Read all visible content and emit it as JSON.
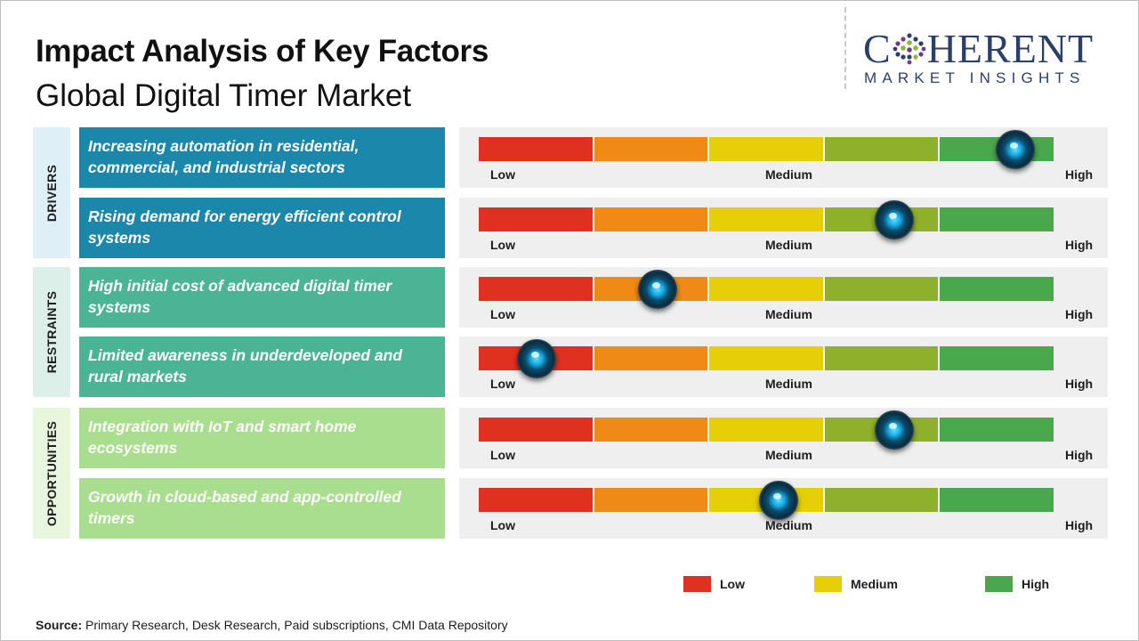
{
  "title": "Impact Analysis of Key Factors",
  "subtitle": "Global Digital Timer Market",
  "logo": {
    "main": "COHERENT",
    "sub": "MARKET INSIGHTS",
    "color": "#2b3f6b"
  },
  "scale": {
    "low_label": "Low",
    "medium_label": "Medium",
    "high_label": "High",
    "segment_colors": [
      "#e03020",
      "#ef8a17",
      "#e6cf06",
      "#8fb02a",
      "#4aa84c"
    ]
  },
  "legend": [
    {
      "label": "Low",
      "color": "#e03020"
    },
    {
      "label": "Medium",
      "color": "#e6cf06"
    },
    {
      "label": "High",
      "color": "#4aa84c"
    }
  ],
  "source": {
    "prefix": "Source:",
    "text": " Primary Research, Desk Research, Paid subscriptions, CMI Data Repository"
  },
  "chart_data": {
    "type": "gauge",
    "title": "Impact Analysis of Key Factors",
    "subtitle": "Global Digital Timer Market",
    "scale": [
      "Low",
      "Medium",
      "High"
    ],
    "impact_range": [
      0,
      1
    ],
    "groups": [
      {
        "name": "DRIVERS",
        "tab_color": "#deeff8",
        "factor_color": "#1a87ab",
        "factors": [
          {
            "label": "Increasing automation in residential, commercial, and industrial sectors",
            "impact": 0.93
          },
          {
            "label": "Rising demand for energy efficient control systems",
            "impact": 0.72
          }
        ]
      },
      {
        "name": "RESTRAINTS",
        "tab_color": "#dcefe8",
        "factor_color": "#4bb494",
        "factors": [
          {
            "label": "High initial cost of advanced digital timer systems",
            "impact": 0.31
          },
          {
            "label": "Limited awareness in underdeveloped and rural markets",
            "impact": 0.1
          }
        ]
      },
      {
        "name": "OPPORTUNITIES",
        "tab_color": "#e8f6de",
        "factor_color": "#a8de8e",
        "factors": [
          {
            "label": "Integration with IoT and smart home ecosystems",
            "impact": 0.72
          },
          {
            "label": "Growth in cloud-based and app-controlled timers",
            "impact": 0.52
          }
        ]
      }
    ]
  }
}
